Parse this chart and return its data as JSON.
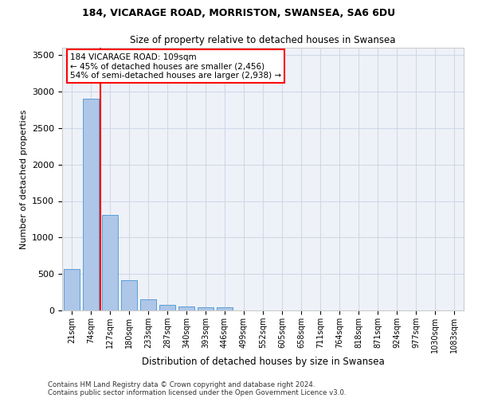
{
  "title1": "184, VICARAGE ROAD, MORRISTON, SWANSEA, SA6 6DU",
  "title2": "Size of property relative to detached houses in Swansea",
  "xlabel": "Distribution of detached houses by size in Swansea",
  "ylabel": "Number of detached properties",
  "categories": [
    "21sqm",
    "74sqm",
    "127sqm",
    "180sqm",
    "233sqm",
    "287sqm",
    "340sqm",
    "393sqm",
    "446sqm",
    "499sqm",
    "552sqm",
    "605sqm",
    "658sqm",
    "711sqm",
    "764sqm",
    "818sqm",
    "871sqm",
    "924sqm",
    "977sqm",
    "1030sqm",
    "1083sqm"
  ],
  "values": [
    570,
    2900,
    1310,
    415,
    155,
    80,
    50,
    45,
    45,
    0,
    0,
    0,
    0,
    0,
    0,
    0,
    0,
    0,
    0,
    0,
    0
  ],
  "bar_color": "#aec6e8",
  "bar_edge_color": "#5a9fd4",
  "grid_color": "#d0d8e8",
  "background_color": "#eef2f8",
  "annotation_box_text": "184 VICARAGE ROAD: 109sqm\n← 45% of detached houses are smaller (2,456)\n54% of semi-detached houses are larger (2,938) →",
  "annotation_box_color": "white",
  "annotation_box_edge_color": "red",
  "vline_x": 1.5,
  "vline_color": "red",
  "ylim": [
    0,
    3600
  ],
  "yticks": [
    0,
    500,
    1000,
    1500,
    2000,
    2500,
    3000,
    3500
  ],
  "footnote1": "Contains HM Land Registry data © Crown copyright and database right 2024.",
  "footnote2": "Contains public sector information licensed under the Open Government Licence v3.0."
}
